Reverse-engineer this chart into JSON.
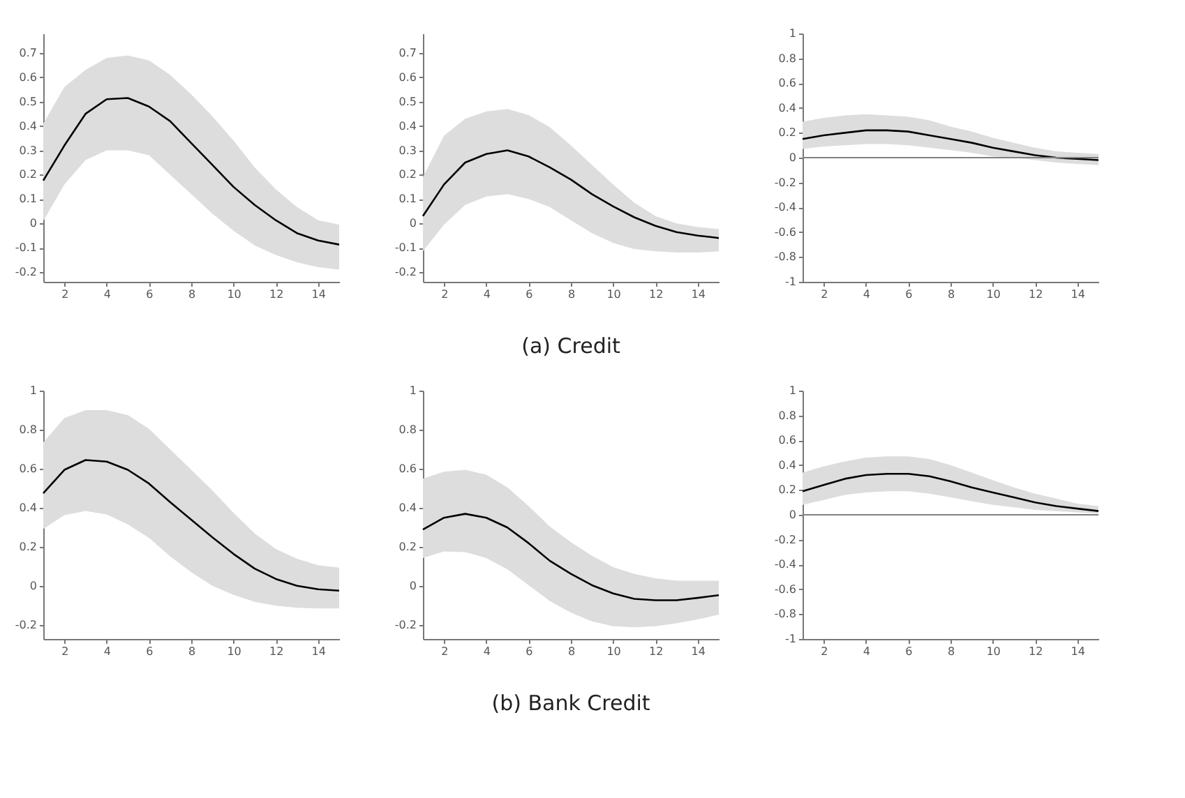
{
  "chart_data": [
    {
      "type": "line",
      "x": [
        1,
        2,
        3,
        4,
        5,
        6,
        7,
        8,
        9,
        10,
        11,
        12,
        13,
        14,
        15
      ],
      "xlim": [
        1,
        15
      ],
      "xticks": [
        2,
        4,
        6,
        8,
        10,
        12,
        14
      ],
      "ylim": [
        -0.24,
        0.78
      ],
      "yticks": [
        -0.2,
        -0.1,
        0,
        0.1,
        0.2,
        0.3,
        0.4,
        0.5,
        0.6,
        0.7
      ],
      "grid": false,
      "series": [
        {
          "color": "#000000",
          "values": [
            0.176,
            0.32,
            0.45,
            0.51,
            0.515,
            0.48,
            0.42,
            0.33,
            0.24,
            0.15,
            0.076,
            0.013,
            -0.04,
            -0.07,
            -0.087
          ],
          "upper": [
            0.41,
            0.56,
            0.63,
            0.68,
            0.69,
            0.67,
            0.61,
            0.53,
            0.44,
            0.34,
            0.23,
            0.14,
            0.067,
            0.013,
            -0.005
          ],
          "lower": [
            0.01,
            0.16,
            0.26,
            0.3,
            0.3,
            0.28,
            0.2,
            0.12,
            0.04,
            -0.03,
            -0.09,
            -0.13,
            -0.16,
            -0.18,
            -0.19
          ]
        }
      ]
    },
    {
      "type": "line",
      "title": "(a) Credit",
      "x": [
        1,
        2,
        3,
        4,
        5,
        6,
        7,
        8,
        9,
        10,
        11,
        12,
        13,
        14,
        15
      ],
      "xlim": [
        1,
        15
      ],
      "xticks": [
        2,
        4,
        6,
        8,
        10,
        12,
        14
      ],
      "ylim": [
        -0.24,
        0.78
      ],
      "yticks": [
        -0.2,
        -0.1,
        0,
        0.1,
        0.2,
        0.3,
        0.4,
        0.5,
        0.6,
        0.7
      ],
      "grid": false,
      "series": [
        {
          "color": "#000000",
          "values": [
            0.03,
            0.16,
            0.25,
            0.285,
            0.3,
            0.275,
            0.23,
            0.18,
            0.12,
            0.07,
            0.025,
            -0.01,
            -0.036,
            -0.05,
            -0.06
          ],
          "upper": [
            0.19,
            0.36,
            0.43,
            0.46,
            0.47,
            0.445,
            0.395,
            0.32,
            0.24,
            0.16,
            0.085,
            0.03,
            0,
            -0.015,
            -0.024
          ],
          "lower": [
            -0.115,
            -0.005,
            0.076,
            0.11,
            0.12,
            0.1,
            0.067,
            0.013,
            -0.04,
            -0.08,
            -0.105,
            -0.115,
            -0.12,
            -0.12,
            -0.115
          ]
        }
      ]
    },
    {
      "type": "line",
      "x": [
        1,
        2,
        3,
        4,
        5,
        6,
        7,
        8,
        9,
        10,
        11,
        12,
        13,
        14,
        15
      ],
      "xlim": [
        1,
        15
      ],
      "xticks": [
        2,
        4,
        6,
        8,
        10,
        12,
        14
      ],
      "ylim": [
        -1,
        1
      ],
      "yticks": [
        -1,
        -0.8,
        -0.6,
        -0.4,
        -0.2,
        0,
        0.2,
        0.4,
        0.6,
        0.8,
        1
      ],
      "grid": false,
      "ref_lines": [
        {
          "axis": "y",
          "value": 0,
          "color": "#808080"
        }
      ],
      "series": [
        {
          "color": "#000000",
          "values": [
            0.15,
            0.18,
            0.2,
            0.22,
            0.22,
            0.21,
            0.18,
            0.15,
            0.12,
            0.08,
            0.05,
            0.02,
            0,
            -0.01,
            -0.02
          ],
          "upper": [
            0.29,
            0.32,
            0.34,
            0.35,
            0.34,
            0.33,
            0.3,
            0.25,
            0.21,
            0.16,
            0.12,
            0.08,
            0.05,
            0.04,
            0.03
          ],
          "lower": [
            0.07,
            0.09,
            0.1,
            0.11,
            0.11,
            0.1,
            0.08,
            0.06,
            0.04,
            0.01,
            0,
            -0.02,
            -0.04,
            -0.05,
            -0.06
          ]
        }
      ]
    },
    {
      "type": "line",
      "x": [
        1,
        2,
        3,
        4,
        5,
        6,
        7,
        8,
        9,
        10,
        11,
        12,
        13,
        14,
        15
      ],
      "xlim": [
        1,
        15
      ],
      "xticks": [
        2,
        4,
        6,
        8,
        10,
        12,
        14
      ],
      "ylim": [
        -0.27,
        1
      ],
      "yticks": [
        -0.2,
        0,
        0.2,
        0.4,
        0.6,
        0.8,
        1
      ],
      "grid": false,
      "series": [
        {
          "color": "#000000",
          "values": [
            0.475,
            0.595,
            0.645,
            0.637,
            0.595,
            0.525,
            0.43,
            0.34,
            0.25,
            0.165,
            0.09,
            0.037,
            0.002,
            -0.016,
            -0.023
          ],
          "upper": [
            0.735,
            0.86,
            0.9,
            0.9,
            0.875,
            0.805,
            0.7,
            0.595,
            0.49,
            0.375,
            0.27,
            0.19,
            0.14,
            0.107,
            0.095
          ],
          "lower": [
            0.293,
            0.363,
            0.385,
            0.367,
            0.316,
            0.247,
            0.153,
            0.072,
            0.002,
            -0.044,
            -0.08,
            -0.1,
            -0.11,
            -0.114,
            -0.114
          ]
        }
      ]
    },
    {
      "type": "line",
      "title": "(b) Bank Credit",
      "x": [
        1,
        2,
        3,
        4,
        5,
        6,
        7,
        8,
        9,
        10,
        11,
        12,
        13,
        14,
        15
      ],
      "xlim": [
        1,
        15
      ],
      "xticks": [
        2,
        4,
        6,
        8,
        10,
        12,
        14
      ],
      "ylim": [
        -0.27,
        1
      ],
      "yticks": [
        -0.2,
        0,
        0.2,
        0.4,
        0.6,
        0.8,
        1
      ],
      "grid": false,
      "series": [
        {
          "color": "#000000",
          "values": [
            0.29,
            0.35,
            0.37,
            0.35,
            0.3,
            0.22,
            0.13,
            0.063,
            0.005,
            -0.037,
            -0.065,
            -0.072,
            -0.072,
            -0.06,
            -0.046
          ],
          "upper": [
            0.55,
            0.585,
            0.595,
            0.57,
            0.505,
            0.41,
            0.305,
            0.225,
            0.155,
            0.097,
            0.063,
            0.04,
            0.028,
            0.028,
            0.028
          ],
          "lower": [
            0.144,
            0.178,
            0.174,
            0.144,
            0.086,
            0.005,
            -0.076,
            -0.135,
            -0.18,
            -0.205,
            -0.21,
            -0.205,
            -0.19,
            -0.17,
            -0.146
          ]
        }
      ]
    },
    {
      "type": "line",
      "x": [
        1,
        2,
        3,
        4,
        5,
        6,
        7,
        8,
        9,
        10,
        11,
        12,
        13,
        14,
        15
      ],
      "xlim": [
        1,
        15
      ],
      "xticks": [
        2,
        4,
        6,
        8,
        10,
        12,
        14
      ],
      "ylim": [
        -1,
        1
      ],
      "yticks": [
        -1,
        -0.8,
        -0.6,
        -0.4,
        -0.2,
        0,
        0.2,
        0.4,
        0.6,
        0.8,
        1
      ],
      "grid": false,
      "ref_lines": [
        {
          "axis": "y",
          "value": 0,
          "color": "#808080"
        }
      ],
      "series": [
        {
          "color": "#000000",
          "values": [
            0.19,
            0.24,
            0.29,
            0.32,
            0.33,
            0.33,
            0.31,
            0.27,
            0.22,
            0.18,
            0.14,
            0.1,
            0.07,
            0.05,
            0.03
          ],
          "upper": [
            0.34,
            0.39,
            0.43,
            0.46,
            0.47,
            0.47,
            0.45,
            0.4,
            0.34,
            0.28,
            0.22,
            0.17,
            0.13,
            0.09,
            0.07
          ],
          "lower": [
            0.08,
            0.12,
            0.16,
            0.18,
            0.19,
            0.19,
            0.17,
            0.14,
            0.11,
            0.08,
            0.06,
            0.04,
            0.03,
            0.02,
            0.01
          ]
        }
      ]
    }
  ]
}
